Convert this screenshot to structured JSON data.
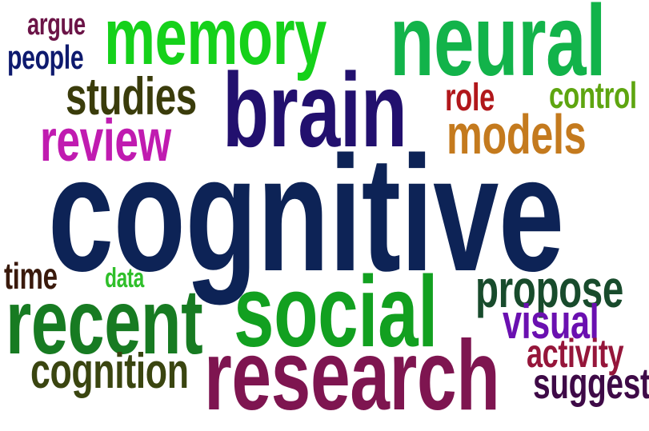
{
  "word_cloud": {
    "words": [
      {
        "text": "argue",
        "color": "#6b1447"
      },
      {
        "text": "people",
        "color": "#0e1a6e"
      },
      {
        "text": "memory",
        "color": "#15d11a"
      },
      {
        "text": "neural",
        "color": "#12b34a"
      },
      {
        "text": "studies",
        "color": "#3a3c0b"
      },
      {
        "text": "brain",
        "color": "#22106e"
      },
      {
        "text": "role",
        "color": "#b1171b"
      },
      {
        "text": "control",
        "color": "#5ea510"
      },
      {
        "text": "review",
        "color": "#c01bb0"
      },
      {
        "text": "models",
        "color": "#c47a1e"
      },
      {
        "text": "cognitive",
        "color": "#0d2356"
      },
      {
        "text": "time",
        "color": "#3a1a0c"
      },
      {
        "text": "data",
        "color": "#2fbf2a"
      },
      {
        "text": "propose",
        "color": "#184b2c"
      },
      {
        "text": "recent",
        "color": "#177b22"
      },
      {
        "text": "social",
        "color": "#12a020"
      },
      {
        "text": "visual",
        "color": "#6a10b0"
      },
      {
        "text": "activity",
        "color": "#95163a"
      },
      {
        "text": "cognition",
        "color": "#3a4510"
      },
      {
        "text": "research",
        "color": "#7e1550"
      },
      {
        "text": "suggest",
        "color": "#3e0a47"
      }
    ]
  }
}
